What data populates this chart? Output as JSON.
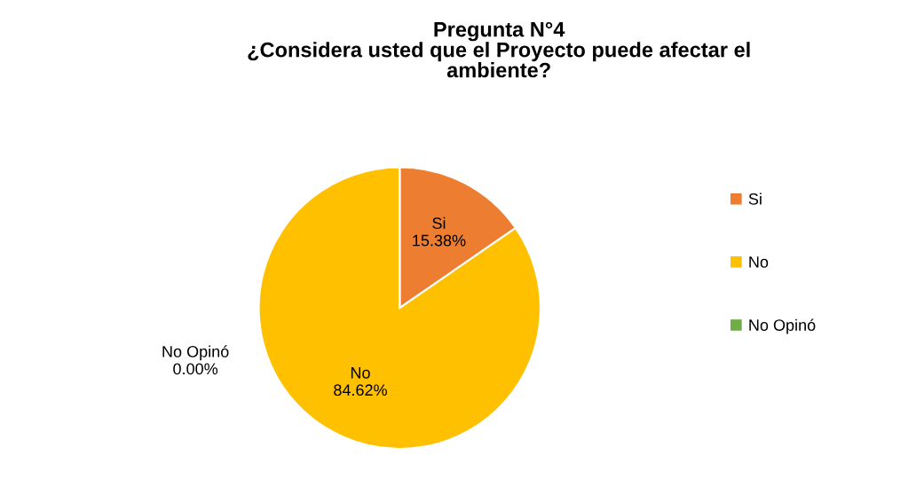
{
  "chart_data": {
    "type": "pie",
    "title": "Pregunta N°4\n¿Considera usted que el Proyecto puede afectar el\nambiente?",
    "categories": [
      "Si",
      "No",
      "No Opinó"
    ],
    "values": [
      15.38,
      84.62,
      0
    ],
    "colors": [
      "#ed7d31",
      "#ffc000",
      "#70ad47"
    ],
    "value_labels": [
      "15.38%",
      "84.62%",
      "0.00%"
    ],
    "legend": "right"
  }
}
